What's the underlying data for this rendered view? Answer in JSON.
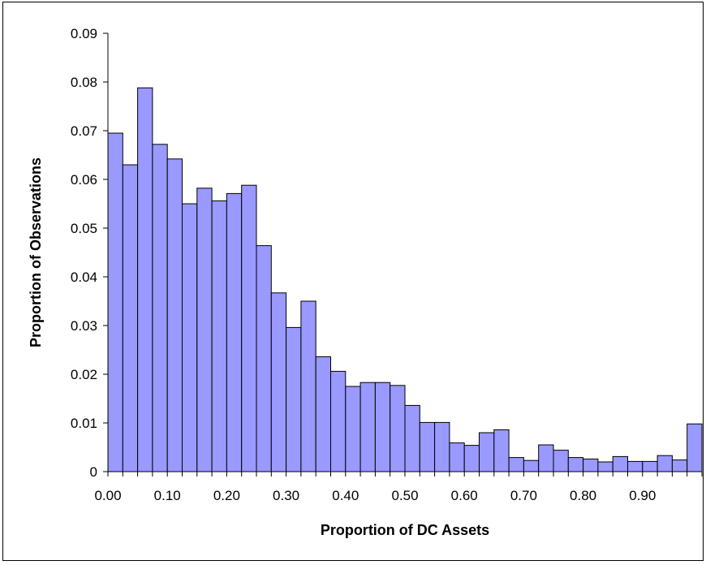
{
  "chart_data": {
    "type": "bar",
    "title": "",
    "xlabel": "Proportion of DC Assets",
    "ylabel": "Proportion of Observations",
    "ylim": [
      0,
      0.09
    ],
    "xlim": [
      0,
      1.0
    ],
    "bin_width": 0.025,
    "grid": false,
    "legend": "none",
    "bar_color": "#9999ff",
    "bar_edge_color": "#000000",
    "x_tick_labels": [
      "0.00",
      "0.10",
      "0.20",
      "0.30",
      "0.40",
      "0.50",
      "0.60",
      "0.70",
      "0.80",
      "0.90"
    ],
    "x_tick_values": [
      0.0,
      0.1,
      0.2,
      0.3,
      0.4,
      0.5,
      0.6,
      0.7,
      0.8,
      0.9
    ],
    "y_tick_labels": [
      "0",
      "0.01",
      "0.02",
      "0.03",
      "0.04",
      "0.05",
      "0.06",
      "0.07",
      "0.08",
      "0.09"
    ],
    "y_tick_values": [
      0,
      0.01,
      0.02,
      0.03,
      0.04,
      0.05,
      0.06,
      0.07,
      0.08,
      0.09
    ],
    "values": [
      0.0695,
      0.063,
      0.0788,
      0.0672,
      0.0642,
      0.055,
      0.0582,
      0.0556,
      0.0571,
      0.0588,
      0.0464,
      0.0367,
      0.0296,
      0.035,
      0.0236,
      0.0206,
      0.0175,
      0.0183,
      0.0183,
      0.0177,
      0.0136,
      0.0101,
      0.0101,
      0.0059,
      0.0054,
      0.008,
      0.0086,
      0.0029,
      0.0023,
      0.0055,
      0.0044,
      0.0029,
      0.0026,
      0.002,
      0.0031,
      0.0021,
      0.0021,
      0.0033,
      0.0024,
      0.0098
    ]
  }
}
